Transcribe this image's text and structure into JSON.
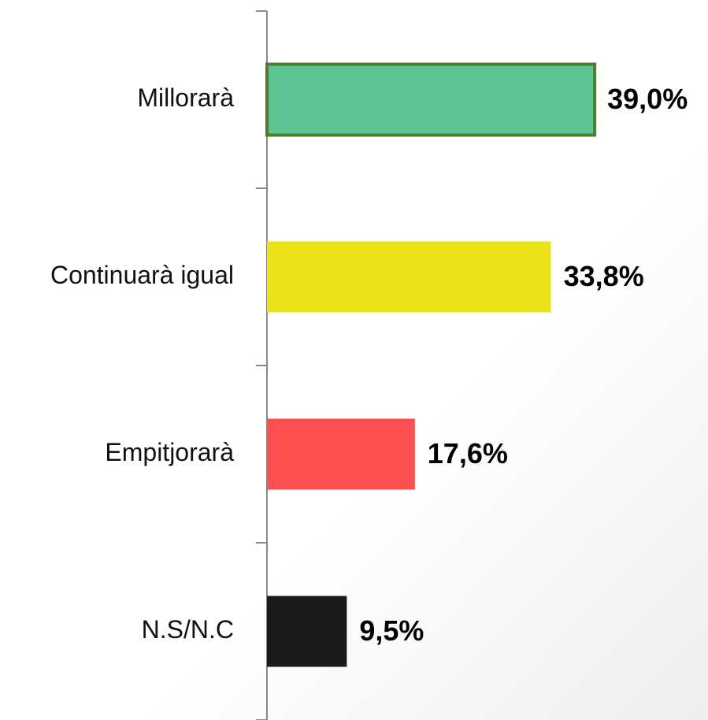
{
  "chart_data": {
    "type": "barh",
    "categories": [
      "Millorarà",
      "Continuarà igual",
      "Empitjorarà",
      "N.S/N.C"
    ],
    "values": [
      39.0,
      33.8,
      17.6,
      9.5
    ],
    "value_labels": [
      "39,0%",
      "33,8%",
      "17,6%",
      "9,5%"
    ],
    "colors": [
      "#5ec493",
      "#ece21a",
      "#fe5050",
      "#1a1a1a"
    ],
    "edgecolors": [
      "#4f7d2f",
      null,
      null,
      null
    ]
  }
}
